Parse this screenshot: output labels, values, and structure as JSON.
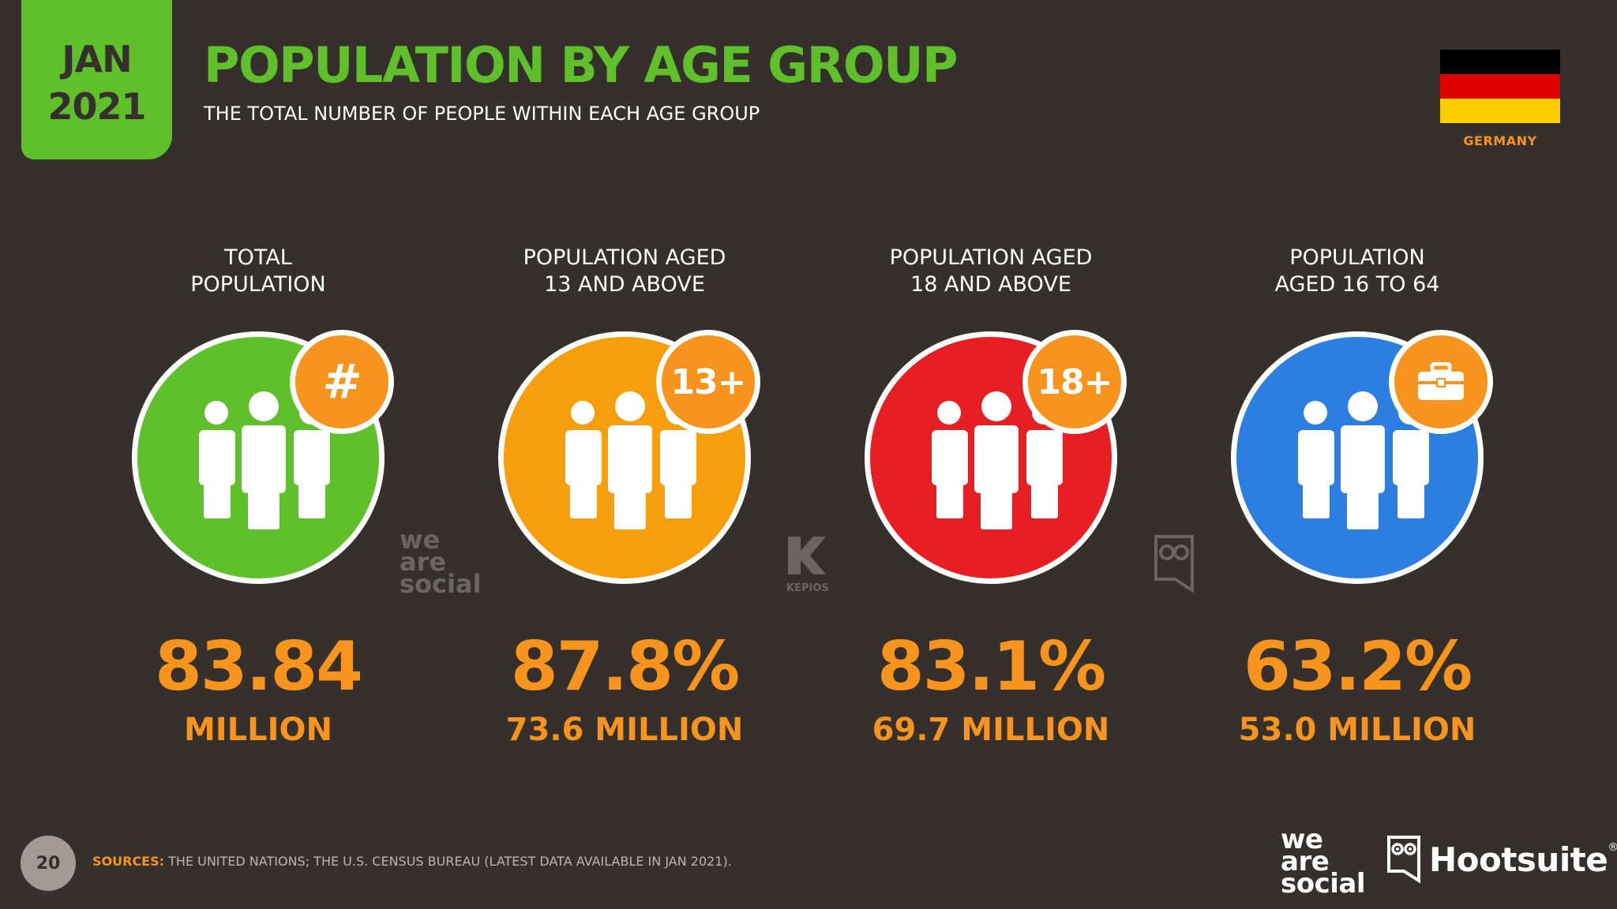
{
  "header": {
    "date_month": "JAN",
    "date_year": "2021",
    "title": "POPULATION BY AGE GROUP",
    "subtitle": "THE TOTAL NUMBER OF PEOPLE WITHIN EACH AGE GROUP",
    "country": "GERMANY",
    "flag_colors": [
      "#000000",
      "#dd0000",
      "#ffce00"
    ]
  },
  "stats": [
    {
      "label_line1": "TOTAL",
      "label_line2": "POPULATION",
      "badge": "#",
      "badge_icon": "hash-icon",
      "circle_color": "#5fc02c",
      "value": "83.84",
      "sub": "MILLION"
    },
    {
      "label_line1": "POPULATION AGED",
      "label_line2": "13 AND ABOVE",
      "badge": "13+",
      "badge_icon": "age-13-plus-icon",
      "circle_color": "#f79e0d",
      "value": "87.8%",
      "sub": "73.6 MILLION"
    },
    {
      "label_line1": "POPULATION AGED",
      "label_line2": "18 AND ABOVE",
      "badge": "18+",
      "badge_icon": "age-18-plus-icon",
      "circle_color": "#e81f22",
      "value": "83.1%",
      "sub": "69.7 MILLION"
    },
    {
      "label_line1": "POPULATION",
      "label_line2": "AGED 16 TO 64",
      "badge": "",
      "badge_icon": "briefcase-icon",
      "circle_color": "#2c7fe0",
      "value": "63.2%",
      "sub": "53.0 MILLION"
    }
  ],
  "watermarks": {
    "we_are_social_1": "we",
    "we_are_social_2": "are",
    "we_are_social_3": "social",
    "kepios": "KEPIOS"
  },
  "footer": {
    "page_number": "20",
    "sources_label": "SOURCES:",
    "sources_text": " THE UNITED NATIONS; THE U.S. CENSUS BUREAU (LATEST DATA AVAILABLE IN JAN 2021).",
    "logo_was_1": "we",
    "logo_was_2": "are",
    "logo_was_3": "social",
    "logo_hootsuite": "Hootsuite",
    "logo_hootsuite_mark": "®"
  },
  "colors": {
    "background": "#35302c",
    "accent_green": "#5fc02c",
    "accent_orange": "#f7941d"
  }
}
